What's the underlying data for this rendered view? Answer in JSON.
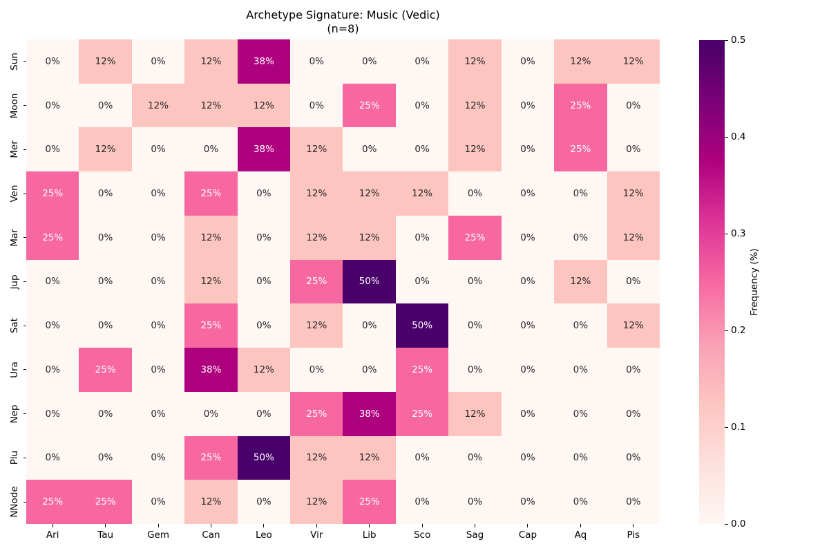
{
  "chart_data": {
    "type": "heatmap",
    "title": "Archetype Signature: Music (Vedic)",
    "subtitle": "(n=8)",
    "n": 8,
    "rows": [
      "Sun",
      "Moon",
      "Mer",
      "Ven",
      "Mar",
      "Jup",
      "Sat",
      "Ura",
      "Nep",
      "Plu",
      "NNode"
    ],
    "columns": [
      "Ari",
      "Tau",
      "Gem",
      "Can",
      "Leo",
      "Vir",
      "Lib",
      "Sco",
      "Sag",
      "Cap",
      "Aq",
      "Pis"
    ],
    "values_percent": [
      [
        0,
        12,
        0,
        12,
        38,
        0,
        0,
        0,
        12,
        0,
        12,
        12
      ],
      [
        0,
        0,
        12,
        12,
        12,
        0,
        25,
        0,
        12,
        0,
        25,
        0
      ],
      [
        0,
        12,
        0,
        0,
        38,
        12,
        0,
        0,
        12,
        0,
        25,
        0
      ],
      [
        25,
        0,
        0,
        25,
        0,
        12,
        12,
        12,
        0,
        0,
        0,
        12
      ],
      [
        25,
        0,
        0,
        12,
        0,
        12,
        12,
        0,
        25,
        0,
        0,
        12
      ],
      [
        0,
        0,
        0,
        12,
        0,
        25,
        50,
        0,
        0,
        0,
        12,
        0
      ],
      [
        0,
        0,
        0,
        25,
        0,
        12,
        0,
        50,
        0,
        0,
        0,
        12
      ],
      [
        0,
        25,
        0,
        38,
        12,
        0,
        0,
        25,
        0,
        0,
        0,
        0
      ],
      [
        0,
        0,
        0,
        0,
        0,
        25,
        38,
        25,
        12,
        0,
        0,
        0
      ],
      [
        0,
        0,
        0,
        25,
        50,
        12,
        12,
        0,
        0,
        0,
        0,
        0
      ],
      [
        25,
        25,
        0,
        12,
        0,
        12,
        25,
        0,
        0,
        0,
        0,
        0
      ]
    ],
    "cell_label_suffix": "%",
    "grid": false,
    "legend_position": "right-colorbar",
    "colorbar": {
      "label": "Frequency (%)",
      "ticks": [
        "0.0",
        "0.1",
        "0.2",
        "0.3",
        "0.4",
        "0.5"
      ],
      "min": 0.0,
      "max": 0.5
    },
    "colormap": {
      "name": "RdPu",
      "stops": [
        {
          "t": 0.0,
          "color": "#fff7f3"
        },
        {
          "t": 0.125,
          "color": "#fde0dd"
        },
        {
          "t": 0.25,
          "color": "#fcc5c0"
        },
        {
          "t": 0.375,
          "color": "#fa9fb5"
        },
        {
          "t": 0.5,
          "color": "#f768a1"
        },
        {
          "t": 0.625,
          "color": "#dd3497"
        },
        {
          "t": 0.75,
          "color": "#ae017e"
        },
        {
          "t": 0.875,
          "color": "#7a0177"
        },
        {
          "t": 1.0,
          "color": "#49006a"
        }
      ]
    },
    "annotation_text_colors": {
      "dark": "#262626",
      "light": "#ffffff",
      "light_threshold_percent": 25
    },
    "axis_color": "#000000"
  }
}
